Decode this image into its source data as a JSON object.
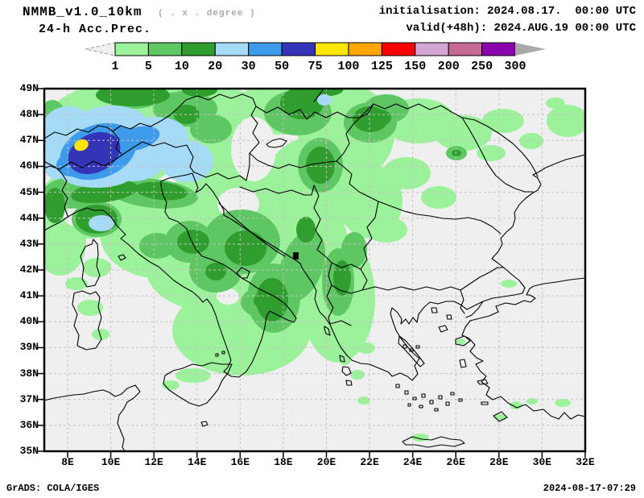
{
  "header": {
    "model": "NMMB_v1.0_10km",
    "resolution_note": "( . x . degree )",
    "product": "24-h Acc.Prec.",
    "init_line": "initialisation: 2024.08.17.  00:00 UTC",
    "valid_line": "valid(+48h): 2024.AUG.19 00:00 UTC"
  },
  "legend": {
    "tick_labels": [
      "1",
      "5",
      "10",
      "20",
      "30",
      "50",
      "75",
      "100",
      "125",
      "150",
      "200",
      "250",
      "300"
    ],
    "levels": [
      1,
      5,
      10,
      20,
      30,
      50,
      75,
      100,
      125,
      150,
      200,
      250,
      300
    ],
    "colors": [
      "#9BF29B",
      "#5EC763",
      "#2F9E2F",
      "#A6DBF7",
      "#3E9AEA",
      "#3334B8",
      "#FFE600",
      "#FFA600",
      "#FA0000",
      "#D4A6D4",
      "#C56A92",
      "#8A05AB"
    ],
    "left_arrow_color": "#EFEFEF",
    "right_arrow_color": "#A9A9A9"
  },
  "map": {
    "lat_labels": [
      "49N",
      "48N",
      "47N",
      "46N",
      "45N",
      "44N",
      "43N",
      "42N",
      "41N",
      "40N",
      "39N",
      "38N",
      "37N",
      "36N",
      "35N"
    ],
    "lon_labels": [
      "8E",
      "10E",
      "12E",
      "14E",
      "16E",
      "18E",
      "20E",
      "22E",
      "24E",
      "26E",
      "28E",
      "30E",
      "32E"
    ],
    "background_color": "#EFEFEF",
    "gridline_color": "#C9C0C6",
    "coastline_color": "#000000",
    "frame_color": "#000000",
    "marker_color": "#000000"
  },
  "footer": {
    "credit": "GrADS: COLA/IGES",
    "timestamp": "2024-08-17-07:29"
  }
}
